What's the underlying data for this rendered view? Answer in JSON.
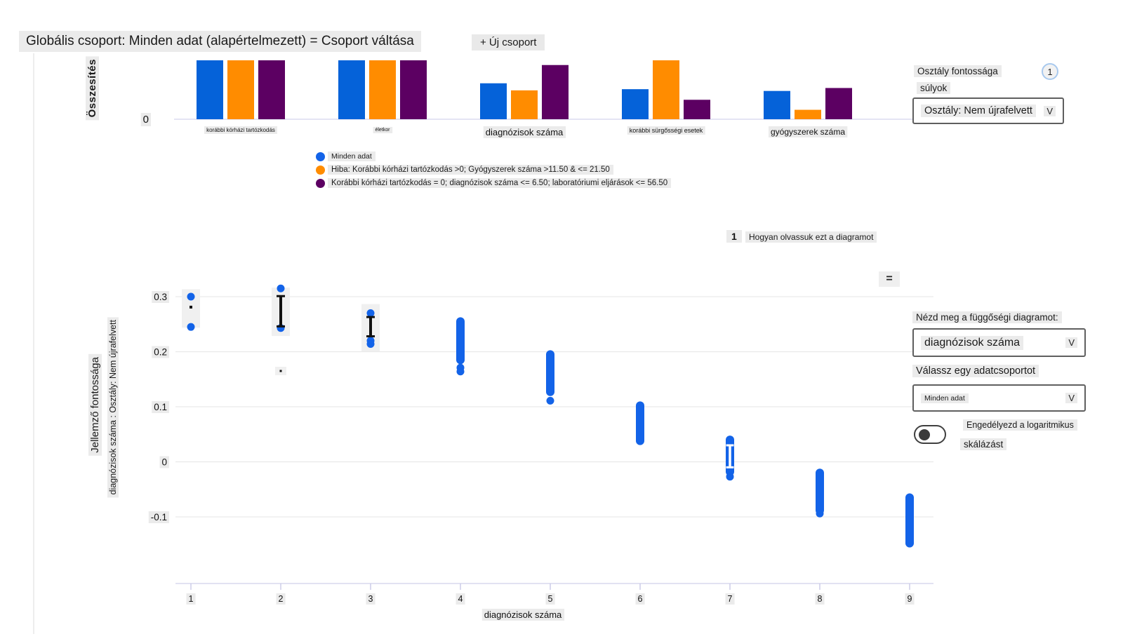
{
  "header": {
    "global_cohort": "Globális csoport: Minden adat (alapértelmezett) = Csoport váltása",
    "new_cohort_button": "+ Új csoport"
  },
  "legend": [
    {
      "label": "Minden adat",
      "color": "#1363e8"
    },
    {
      "label": "Hiba: Korábbi kórházi tartózkodás >0; Gyógyszerek száma >11.50 & <= 21.50",
      "color": "#ff8c00"
    },
    {
      "label": "Korábbi kórházi tartózkodás = 0; diagnózisok száma <= 6.50; laboratóriumi eljárások <= 56.50",
      "color": "#5c0062"
    }
  ],
  "class_importance": {
    "title": "Osztály fontossága",
    "badge": "1",
    "weights_label": "súlyok",
    "dropdown_value": "Osztály: Nem újrafelvett",
    "chevron": "V"
  },
  "how_to": {
    "badge": "1",
    "label": "Hogyan olvassuk ezt a diagramot"
  },
  "menu_button_glyph": "=",
  "dependence_panel": {
    "title": "Nézd meg a függőségi diagramot:",
    "feature_value": "diagnózisok száma",
    "feature_chevron": "V",
    "cohort_title": "Válassz egy adatcsoportot",
    "cohort_value": "Minden adat",
    "cohort_chevron": "V",
    "log_label_line1": "Engedélyezd a logaritmikus",
    "log_label_line2": "skálázást"
  },
  "chart_data": [
    {
      "type": "bar",
      "title": "Összesítés",
      "ylabel": "Összesítés",
      "ytick_label": "0",
      "ylim": [
        0,
        1.0
      ],
      "grid": false,
      "legend_position": "below-left",
      "categories": [
        "korábbi kórházi tartózkodás",
        "életkor",
        "diagnózisok száma",
        "korábbi sürgősségi esetek",
        "gyógyszerek száma"
      ],
      "series": [
        {
          "name": "Minden adat",
          "color": "#0562d9",
          "values": [
            1.0,
            1.0,
            0.61,
            0.51,
            0.48
          ]
        },
        {
          "name": "Hiba: Korábbi kórházi tartózkodás >0; Gyógyszerek száma >11.50 & <= 21.50",
          "color": "#ff8c00",
          "values": [
            1.0,
            1.0,
            0.49,
            1.0,
            0.16
          ]
        },
        {
          "name": "Korábbi kórházi tartózkodás = 0; diagnózisok száma <= 6.50; laboratóriumi eljárások <= 56.50",
          "color": "#5c0062",
          "values": [
            1.0,
            1.0,
            0.92,
            0.33,
            0.53
          ]
        }
      ]
    },
    {
      "type": "scatter",
      "xlabel": "diagnózisok száma",
      "ylabel_primary": "Jellemző fontossága",
      "ylabel_secondary": "diagnózisok száma : Osztály: Nem újrafelvett",
      "xticks": [
        1,
        2,
        3,
        4,
        5,
        6,
        7,
        8,
        9
      ],
      "yticks": [
        0.3,
        0.2,
        0.1,
        0,
        -0.1
      ],
      "xlim": [
        0.8,
        9.3
      ],
      "ylim": [
        -0.17,
        0.34
      ],
      "grid": true,
      "point_color": "#1363e8",
      "clusters": [
        {
          "x": 1,
          "dots": [
            0.3,
            0.245
          ],
          "highlight": [
            0.255,
            0.302
          ],
          "selected_dot": 0.281
        },
        {
          "x": 2,
          "dots": [
            0.315,
            0.243
          ],
          "highlight": [
            0.24,
            0.305
          ],
          "selected_errorbar": {
            "lo": 0.246,
            "hi": 0.301
          },
          "extra_mark": 0.165
        },
        {
          "x": 3,
          "dots": [
            0.27,
            0.22,
            0.214
          ],
          "highlight": [
            0.212,
            0.275
          ],
          "selected_errorbar": {
            "lo": 0.228,
            "hi": 0.263
          }
        },
        {
          "x": 4,
          "strip": [
            0.185,
            0.255
          ],
          "dots": [
            0.171,
            0.164
          ]
        },
        {
          "x": 5,
          "strip": [
            0.127,
            0.195
          ],
          "dots": [
            0.111
          ]
        },
        {
          "x": 6,
          "strip": [
            0.038,
            0.102
          ]
        },
        {
          "x": 7,
          "strip": [
            -0.018,
            0.04
          ],
          "white_errorbar": {
            "lo": -0.01,
            "hi": 0.03
          },
          "dots": [
            -0.027
          ]
        },
        {
          "x": 8,
          "strip": [
            -0.088,
            -0.02
          ],
          "dots": [
            -0.094
          ]
        },
        {
          "x": 9,
          "strip": [
            -0.148,
            -0.065
          ]
        }
      ]
    }
  ]
}
